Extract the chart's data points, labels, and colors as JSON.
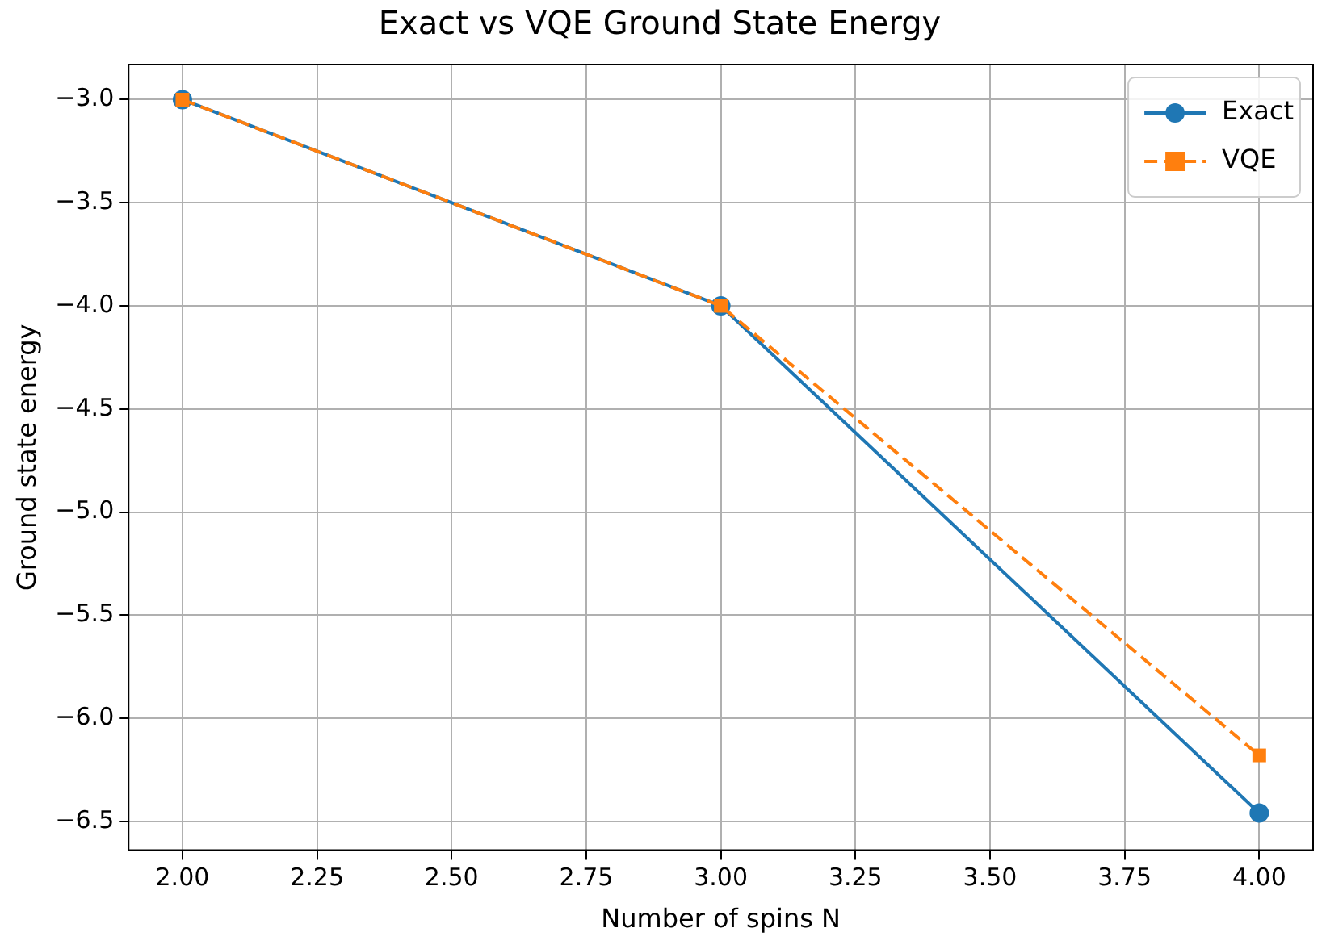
{
  "chart_data": {
    "type": "line",
    "title": "Exact vs VQE Ground State Energy",
    "xlabel": "Number of spins N",
    "ylabel": "Ground state energy",
    "x": [
      2,
      3,
      4
    ],
    "series": [
      {
        "name": "Exact",
        "color": "#1f77b4",
        "values": [
          -3,
          -4,
          -6.46
        ],
        "marker": "circle",
        "line_style": "solid"
      },
      {
        "name": "VQE",
        "color": "#ff7f0e",
        "values": [
          -3,
          -4,
          -6.18
        ],
        "marker": "square",
        "line_style": "dashed"
      }
    ],
    "xlim": [
      1.9,
      4.1
    ],
    "xticks": [
      {
        "value": 2,
        "label": "2.00"
      },
      {
        "value": 2.25,
        "label": "2.25"
      },
      {
        "value": 2.5,
        "label": "2.50"
      },
      {
        "value": 2.75,
        "label": "2.75"
      },
      {
        "value": 3,
        "label": "3.00"
      },
      {
        "value": 3.25,
        "label": "3.25"
      },
      {
        "value": 3.5,
        "label": "3.50"
      },
      {
        "value": 3.75,
        "label": "3.75"
      },
      {
        "value": 4,
        "label": "4.00"
      }
    ],
    "ylim": [
      -6.64,
      -2.83
    ],
    "yticks": [
      {
        "value": -6.5,
        "label": "−6.5"
      },
      {
        "value": -6,
        "label": "−6.0"
      },
      {
        "value": -5.5,
        "label": "−5.5"
      },
      {
        "value": -5,
        "label": "−5.0"
      },
      {
        "value": -4.5,
        "label": "−4.5"
      },
      {
        "value": -4,
        "label": "−4.0"
      },
      {
        "value": -3.5,
        "label": "−3.5"
      },
      {
        "value": -3,
        "label": "−3.0"
      }
    ],
    "grid": true,
    "legend": "top right"
  }
}
